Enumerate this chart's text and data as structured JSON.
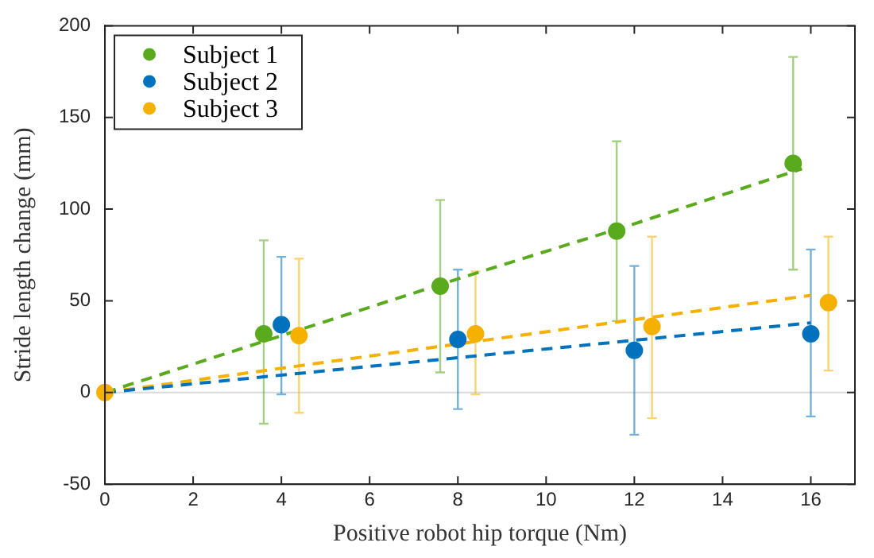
{
  "chart_data": {
    "type": "scatter",
    "xlabel": "Positive robot hip torque (Nm)",
    "ylabel": "Stride length change (mm)",
    "xlim": [
      0,
      17
    ],
    "xticks": [
      0,
      2,
      4,
      6,
      8,
      10,
      12,
      14,
      16
    ],
    "ylim": [
      -50,
      200
    ],
    "yticks": [
      -50,
      0,
      50,
      100,
      150,
      200
    ],
    "grid": false,
    "legend": "top left",
    "marker": "circle",
    "ref_lines": [
      {
        "axis": "y",
        "value": 0,
        "color": "#d9d9d9"
      }
    ],
    "series": [
      {
        "name": "Subject 1",
        "color": "#5aaa1e",
        "x": [
          3.6,
          7.6,
          11.6,
          15.6
        ],
        "values": [
          32,
          58,
          88,
          125
        ],
        "errors": [
          [
            -17,
            83
          ],
          [
            11,
            105
          ],
          [
            39,
            137
          ],
          [
            67,
            183
          ]
        ]
      },
      {
        "name": "Subject 2",
        "color": "#0072bd",
        "x": [
          4,
          8,
          12,
          16
        ],
        "values": [
          37,
          29,
          23,
          32
        ],
        "errors": [
          [
            -1,
            74
          ],
          [
            -9,
            67
          ],
          [
            -23,
            69
          ],
          [
            -13,
            78
          ]
        ]
      },
      {
        "name": "Subject 3",
        "color": "#f5b000",
        "x": [
          0,
          4.4,
          8.4,
          12.4,
          16.4
        ],
        "values": [
          0,
          31,
          32,
          36,
          49
        ],
        "errors": [
          null,
          [
            -11,
            73
          ],
          [
            -1,
            66
          ],
          [
            -14,
            85
          ],
          [
            12,
            85
          ]
        ]
      },
      {
        "type": "line",
        "color": "#5aaa1e",
        "line_style": "dashed",
        "marker": "none",
        "x": [
          0,
          4,
          8,
          12,
          15.8
        ],
        "values": [
          0,
          31,
          62,
          92,
          122
        ]
      },
      {
        "type": "line",
        "color": "#0072bd",
        "line_style": "dashed",
        "marker": "none",
        "x": [
          0,
          16
        ],
        "values": [
          0,
          38
        ]
      },
      {
        "type": "line",
        "color": "#f5b000",
        "line_style": "dashed",
        "marker": "none",
        "x": [
          0,
          16
        ],
        "values": [
          0,
          53
        ]
      }
    ]
  }
}
